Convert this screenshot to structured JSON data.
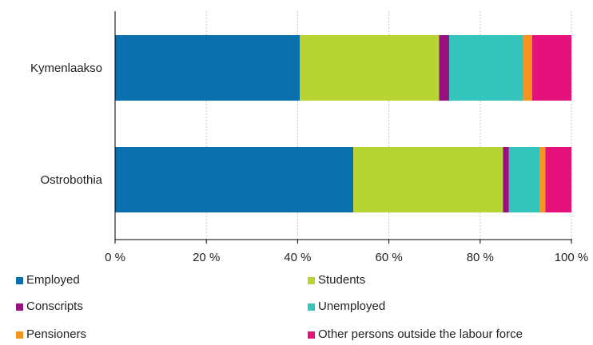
{
  "chart_data": {
    "type": "bar",
    "orientation": "horizontal",
    "stacked": true,
    "title": "",
    "xlabel": "",
    "ylabel": "",
    "categories": [
      "Kymenlaakso",
      "Ostrobothia"
    ],
    "xlim": [
      0,
      100
    ],
    "x_ticks": [
      0,
      20,
      40,
      60,
      80,
      100
    ],
    "x_tick_labels": [
      "0 %",
      "20 %",
      "40 %",
      "60 %",
      "80 %",
      "100 %"
    ],
    "grid": "vertical dashed",
    "legend_position": "bottom",
    "series": [
      {
        "name": "Employed",
        "color": "#0a6fad",
        "values": [
          40.5,
          52.2
        ]
      },
      {
        "name": "Students",
        "color": "#b8d433",
        "values": [
          30.5,
          32.8
        ]
      },
      {
        "name": "Conscripts",
        "color": "#96107e",
        "values": [
          2.2,
          1.3
        ]
      },
      {
        "name": "Unemployed",
        "color": "#35c4bb",
        "values": [
          16.2,
          6.8
        ]
      },
      {
        "name": "Pensioners",
        "color": "#f7941d",
        "values": [
          2.0,
          1.2
        ]
      },
      {
        "name": "Other persons outside the labour force",
        "color": "#e5127b",
        "values": [
          8.6,
          5.7
        ]
      }
    ]
  }
}
